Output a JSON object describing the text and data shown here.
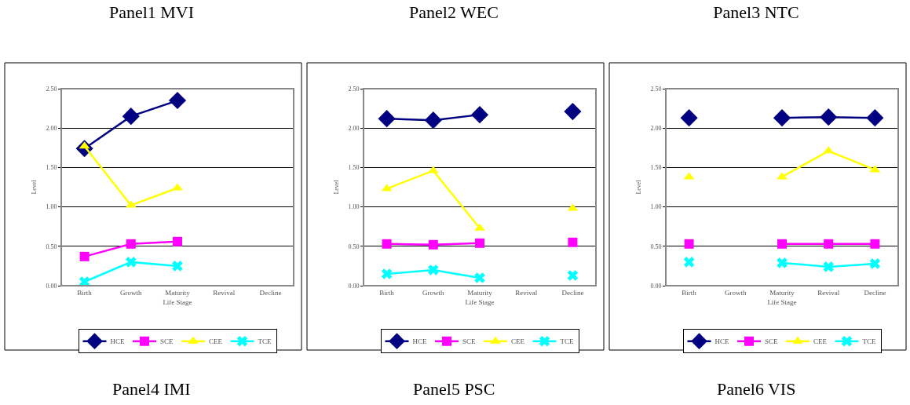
{
  "chart_data": [
    {
      "type": "line",
      "title": "Panel1 MVI",
      "xlabel": "Life Stage",
      "ylabel": "Level",
      "categories": [
        "Birth",
        "Growth",
        "Maturity",
        "Revival",
        "Decline"
      ],
      "ylim": [
        0,
        2.5
      ],
      "yticks": [
        {
          "value": 0,
          "label": "0.00"
        },
        {
          "value": 0.5,
          "label": "0.50"
        },
        {
          "value": 1,
          "label": "1.00"
        },
        {
          "value": 1.5,
          "label": "1.50"
        },
        {
          "value": 2,
          "label": "2.00"
        },
        {
          "value": 2.5,
          "label": "2.50"
        }
      ],
      "grid": "y",
      "legend": "bottom",
      "line_style": "solid",
      "annotations": [
        "Panel4 IMI"
      ],
      "series": [
        {
          "name": "HCE",
          "color": "#000080",
          "marker": "diamond",
          "values": [
            1.74,
            2.15,
            2.35,
            null,
            null
          ]
        },
        {
          "name": "SCE",
          "color": "#ff00ff",
          "marker": "square",
          "values": [
            0.37,
            0.53,
            0.56,
            null,
            null
          ]
        },
        {
          "name": "CEE",
          "color": "#ffff00",
          "marker": "triangle",
          "values": [
            1.77,
            1.02,
            1.24,
            null,
            null
          ]
        },
        {
          "name": "TCE",
          "color": "#00ffff",
          "marker": "cross",
          "values": [
            0.05,
            0.3,
            0.25,
            null,
            null
          ]
        }
      ]
    },
    {
      "type": "line",
      "title": "Panel2 WEC",
      "xlabel": "Life Stage",
      "ylabel": "Level",
      "categories": [
        "Birth",
        "Growth",
        "Maturity",
        "Revival",
        "Decline"
      ],
      "ylim": [
        0,
        2.5
      ],
      "yticks": [
        {
          "value": 0,
          "label": "0.00"
        },
        {
          "value": 0.5,
          "label": "0.50"
        },
        {
          "value": 1,
          "label": "1.00"
        },
        {
          "value": 1.5,
          "label": "1.50"
        },
        {
          "value": 2,
          "label": "2.00"
        },
        {
          "value": 2.5,
          "label": "2.50"
        }
      ],
      "grid": "y",
      "legend": "bottom",
      "line_style": "solid",
      "annotations": [
        "Panel5 PSC"
      ],
      "series": [
        {
          "name": "HCE",
          "color": "#000080",
          "marker": "diamond",
          "values": [
            2.12,
            2.1,
            2.17,
            null,
            2.21
          ]
        },
        {
          "name": "SCE",
          "color": "#ff00ff",
          "marker": "square",
          "values": [
            0.53,
            0.52,
            0.54,
            null,
            0.55
          ]
        },
        {
          "name": "CEE",
          "color": "#ffff00",
          "marker": "triangle",
          "values": [
            1.23,
            1.46,
            0.73,
            null,
            0.98
          ]
        },
        {
          "name": "TCE",
          "color": "#00ffff",
          "marker": "cross",
          "values": [
            0.15,
            0.2,
            0.1,
            null,
            0.13
          ]
        }
      ]
    },
    {
      "type": "line",
      "title": "Panel3 NTC",
      "xlabel": "Life Stage",
      "ylabel": "Level",
      "categories": [
        "Birth",
        "Growth",
        "Maturity",
        "Revival",
        "Decline"
      ],
      "ylim": [
        0,
        2.5
      ],
      "yticks": [
        {
          "value": 0,
          "label": "0.00"
        },
        {
          "value": 0.5,
          "label": "0.50"
        },
        {
          "value": 1,
          "label": "1.00"
        },
        {
          "value": 1.5,
          "label": "1.50"
        },
        {
          "value": 2,
          "label": "2.00"
        },
        {
          "value": 2.5,
          "label": "2.50"
        }
      ],
      "grid": "y",
      "legend": "bottom",
      "line_style": "solid",
      "annotations": [
        "Panel6 VIS"
      ],
      "series": [
        {
          "name": "HCE",
          "color": "#000080",
          "marker": "diamond",
          "values": [
            2.13,
            null,
            2.13,
            2.14,
            2.13
          ]
        },
        {
          "name": "SCE",
          "color": "#ff00ff",
          "marker": "square",
          "values": [
            0.53,
            null,
            0.53,
            0.53,
            0.53
          ]
        },
        {
          "name": "CEE",
          "color": "#ffff00",
          "marker": "triangle",
          "values": [
            1.38,
            null,
            1.38,
            1.71,
            1.47
          ]
        },
        {
          "name": "TCE",
          "color": "#00ffff",
          "marker": "cross",
          "values": [
            0.3,
            null,
            0.29,
            0.24,
            0.28
          ]
        }
      ]
    }
  ]
}
